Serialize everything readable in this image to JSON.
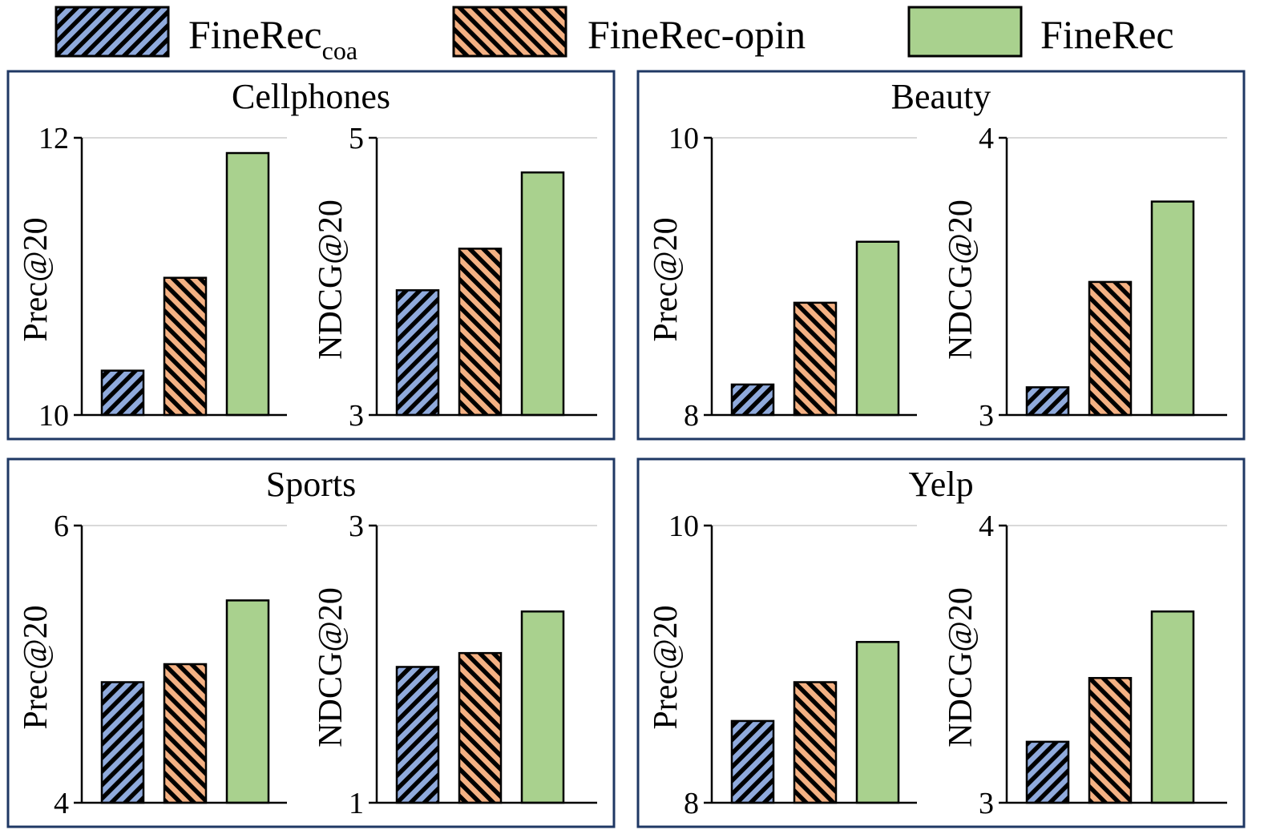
{
  "legend": {
    "items": [
      {
        "label": "FineRec",
        "subscript": "coa",
        "fill": "#8faadc",
        "pattern": "hatch-down"
      },
      {
        "label": "FineRec-opin",
        "subscript": "",
        "fill": "#f4b183",
        "pattern": "hatch-up"
      },
      {
        "label": "FineRec",
        "subscript": "",
        "fill": "#a9d18e",
        "pattern": "solid"
      }
    ]
  },
  "colors": {
    "panel_border": "#1f3864",
    "axis": "#000000",
    "gridline": "#d9d9d9",
    "bar_outline": "#000000",
    "hatch": "#000000"
  },
  "chart_data": [
    {
      "panel": "Cellphones",
      "charts": [
        {
          "type": "bar",
          "ylabel": "Prec@20",
          "ylim": [
            10,
            12
          ],
          "ytick_labels": [
            "10",
            "12"
          ],
          "categories": [
            "FineRec_coa",
            "FineRec-opin",
            "FineRec"
          ],
          "values": [
            10.32,
            10.99,
            11.89
          ],
          "grid": true
        },
        {
          "type": "bar",
          "ylabel": "NDCG@20",
          "ylim": [
            3,
            5
          ],
          "ytick_labels": [
            "3",
            "5"
          ],
          "categories": [
            "FineRec_coa",
            "FineRec-opin",
            "FineRec"
          ],
          "values": [
            3.9,
            4.2,
            4.75
          ],
          "grid": true
        }
      ]
    },
    {
      "panel": "Beauty",
      "charts": [
        {
          "type": "bar",
          "ylabel": "Prec@20",
          "ylim": [
            8,
            10
          ],
          "ytick_labels": [
            "8",
            "10"
          ],
          "categories": [
            "FineRec_coa",
            "FineRec-opin",
            "FineRec"
          ],
          "values": [
            8.22,
            8.81,
            9.25
          ],
          "grid": true
        },
        {
          "type": "bar",
          "ylabel": "NDCG@20",
          "ylim": [
            3,
            4
          ],
          "ytick_labels": [
            "3",
            "4"
          ],
          "categories": [
            "FineRec_coa",
            "FineRec-opin",
            "FineRec"
          ],
          "values": [
            3.1,
            3.48,
            3.77
          ],
          "grid": true
        }
      ]
    },
    {
      "panel": "Sports",
      "charts": [
        {
          "type": "bar",
          "ylabel": "Prec@20",
          "ylim": [
            4,
            6
          ],
          "ytick_labels": [
            "4",
            "6"
          ],
          "categories": [
            "FineRec_coa",
            "FineRec-opin",
            "FineRec"
          ],
          "values": [
            4.87,
            5.0,
            5.46
          ],
          "grid": true
        },
        {
          "type": "bar",
          "ylabel": "NDCG@20",
          "ylim": [
            1,
            3
          ],
          "ytick_labels": [
            "1",
            "3"
          ],
          "categories": [
            "FineRec_coa",
            "FineRec-opin",
            "FineRec"
          ],
          "values": [
            1.98,
            2.08,
            2.38
          ],
          "grid": true
        }
      ]
    },
    {
      "panel": "Yelp",
      "charts": [
        {
          "type": "bar",
          "ylabel": "Prec@20",
          "ylim": [
            8,
            10
          ],
          "ytick_labels": [
            "8",
            "10"
          ],
          "categories": [
            "FineRec_coa",
            "FineRec-opin",
            "FineRec"
          ],
          "values": [
            8.59,
            8.87,
            9.16
          ],
          "grid": true
        },
        {
          "type": "bar",
          "ylabel": "NDCG@20",
          "ylim": [
            3,
            4
          ],
          "ytick_labels": [
            "3",
            "4"
          ],
          "categories": [
            "FineRec_coa",
            "FineRec-opin",
            "FineRec"
          ],
          "values": [
            3.22,
            3.45,
            3.69
          ],
          "grid": true
        }
      ]
    }
  ]
}
